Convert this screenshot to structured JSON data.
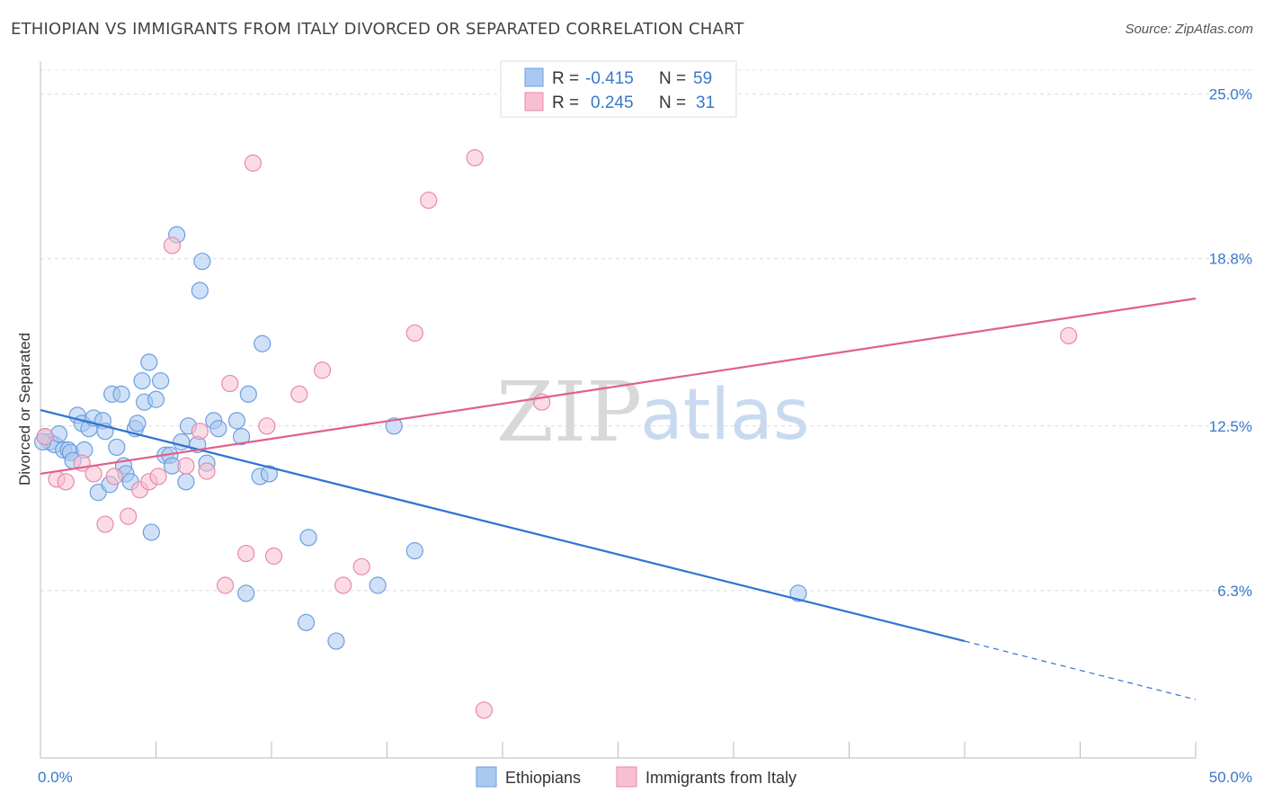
{
  "header": {
    "title": "ETHIOPIAN VS IMMIGRANTS FROM ITALY DIVORCED OR SEPARATED CORRELATION CHART",
    "source": "Source: ZipAtlas.com"
  },
  "watermark": {
    "zip": "ZIP",
    "atlas": "atlas"
  },
  "legend": {
    "rows": [
      {
        "r_label": "R =",
        "r_value": "-0.415",
        "n_label": "N =",
        "n_value": "59",
        "color": "#aac8f0",
        "stroke": "#6b9fe0"
      },
      {
        "r_label": "R =",
        "r_value": "0.245",
        "n_label": "N =",
        "n_value": "31",
        "color": "#f8bfd0",
        "stroke": "#e88aa8"
      }
    ]
  },
  "bottom_legend": [
    {
      "label": "Ethiopians",
      "color": "#aac8f0",
      "stroke": "#6b9fe0"
    },
    {
      "label": "Immigrants from Italy",
      "color": "#f8bfd0",
      "stroke": "#e88aa8"
    }
  ],
  "chart_data": {
    "type": "scatter",
    "title": "ETHIOPIAN VS IMMIGRANTS FROM ITALY DIVORCED OR SEPARATED CORRELATION CHART",
    "xlabel": "",
    "ylabel": "Divorced or Separated",
    "xlim": [
      0,
      50
    ],
    "ylim": [
      0,
      25.9
    ],
    "x_tick_labels": [
      "0.0%",
      "50.0%"
    ],
    "y_ticks": [
      6.3,
      12.5,
      18.8,
      25.0
    ],
    "y_tick_labels": [
      "6.3%",
      "12.5%",
      "18.8%",
      "25.0%"
    ],
    "grid": true,
    "series": [
      {
        "name": "Ethiopians",
        "color": "#6b9fe0",
        "points": [
          [
            0.2,
            12.1
          ],
          [
            0.4,
            11.9
          ],
          [
            0.6,
            11.8
          ],
          [
            0.8,
            12.2
          ],
          [
            1.0,
            11.6
          ],
          [
            1.2,
            11.6
          ],
          [
            1.3,
            11.5
          ],
          [
            1.4,
            11.2
          ],
          [
            1.6,
            12.9
          ],
          [
            1.8,
            12.6
          ],
          [
            1.9,
            11.6
          ],
          [
            2.1,
            12.4
          ],
          [
            2.3,
            12.8
          ],
          [
            2.5,
            10.0
          ],
          [
            2.7,
            12.7
          ],
          [
            2.8,
            12.3
          ],
          [
            3.0,
            10.3
          ],
          [
            3.1,
            13.7
          ],
          [
            3.3,
            11.7
          ],
          [
            3.5,
            13.7
          ],
          [
            3.6,
            11.0
          ],
          [
            3.7,
            10.7
          ],
          [
            3.9,
            10.4
          ],
          [
            4.1,
            12.4
          ],
          [
            4.2,
            12.6
          ],
          [
            4.4,
            14.2
          ],
          [
            4.5,
            13.4
          ],
          [
            4.7,
            14.9
          ],
          [
            4.8,
            8.5
          ],
          [
            5.0,
            13.5
          ],
          [
            5.2,
            14.2
          ],
          [
            5.4,
            11.4
          ],
          [
            5.6,
            11.4
          ],
          [
            5.7,
            11.0
          ],
          [
            5.9,
            19.7
          ],
          [
            6.1,
            11.9
          ],
          [
            6.3,
            10.4
          ],
          [
            6.4,
            12.5
          ],
          [
            6.8,
            11.8
          ],
          [
            7.0,
            18.7
          ],
          [
            6.9,
            17.6
          ],
          [
            7.2,
            11.1
          ],
          [
            7.5,
            12.7
          ],
          [
            7.7,
            12.4
          ],
          [
            8.5,
            12.7
          ],
          [
            8.7,
            12.1
          ],
          [
            8.9,
            6.2
          ],
          [
            9.0,
            13.7
          ],
          [
            9.5,
            10.6
          ],
          [
            9.6,
            15.6
          ],
          [
            9.9,
            10.7
          ],
          [
            11.6,
            8.3
          ],
          [
            11.5,
            5.1
          ],
          [
            12.8,
            4.4
          ],
          [
            14.6,
            6.5
          ],
          [
            15.3,
            12.5
          ],
          [
            16.2,
            7.8
          ],
          [
            32.8,
            6.2
          ],
          [
            0.1,
            11.9
          ]
        ]
      },
      {
        "name": "Immigrants from Italy",
        "color": "#e88aa8",
        "points": [
          [
            0.2,
            12.1
          ],
          [
            0.7,
            10.5
          ],
          [
            1.1,
            10.4
          ],
          [
            1.8,
            11.1
          ],
          [
            2.3,
            10.7
          ],
          [
            2.8,
            8.8
          ],
          [
            3.2,
            10.6
          ],
          [
            3.8,
            9.1
          ],
          [
            4.3,
            10.1
          ],
          [
            4.7,
            10.4
          ],
          [
            5.1,
            10.6
          ],
          [
            5.7,
            19.3
          ],
          [
            6.3,
            11.0
          ],
          [
            6.9,
            12.3
          ],
          [
            7.2,
            10.8
          ],
          [
            8.0,
            6.5
          ],
          [
            8.2,
            14.1
          ],
          [
            8.9,
            7.7
          ],
          [
            9.2,
            22.4
          ],
          [
            9.8,
            12.5
          ],
          [
            10.1,
            7.6
          ],
          [
            11.2,
            13.7
          ],
          [
            12.2,
            14.6
          ],
          [
            13.1,
            6.5
          ],
          [
            13.9,
            7.2
          ],
          [
            16.2,
            16.0
          ],
          [
            16.8,
            21.0
          ],
          [
            18.8,
            22.6
          ],
          [
            19.2,
            1.8
          ],
          [
            21.7,
            13.4
          ],
          [
            44.5,
            15.9
          ]
        ]
      }
    ],
    "trend_lines": [
      {
        "name": "Ethiopians",
        "color": "#2f74d0",
        "x": [
          0,
          40
        ],
        "y": [
          13.1,
          4.4
        ],
        "dashed_to": [
          50,
          2.2
        ]
      },
      {
        "name": "Immigrants from Italy",
        "color": "#e0608a",
        "x": [
          0,
          50
        ],
        "y": [
          10.7,
          17.3
        ]
      }
    ]
  }
}
